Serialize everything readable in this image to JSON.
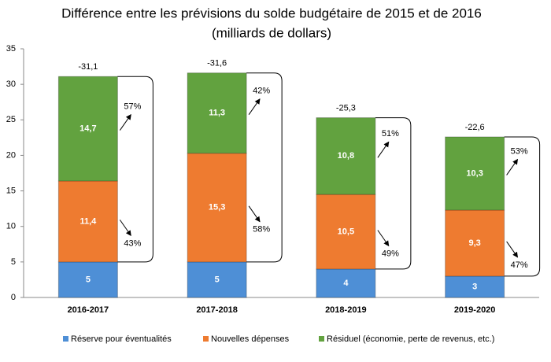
{
  "chart_data": {
    "type": "stacked_bar",
    "title": [
      "Différence entre les prévisions du solde budgétaire de 2015 et de 2016",
      "(milliards de dollars)"
    ],
    "categories": [
      "2016-2017",
      "2017-2018",
      "2018-2019",
      "2019-2020"
    ],
    "series": [
      {
        "name": "Réserve pour éventualités",
        "color": "#4e8fd6",
        "values": [
          5,
          5,
          4,
          3
        ]
      },
      {
        "name": "Nouvelles dépenses",
        "color": "#ee7b30",
        "values": [
          11.4,
          15.3,
          10.5,
          9.3
        ],
        "value_labels": [
          "11,4",
          "15,3",
          "10,5",
          "9,3"
        ],
        "share_values": [
          43,
          58,
          49,
          47
        ],
        "share_labels": [
          "43%",
          "58%",
          "49%",
          "47%"
        ]
      },
      {
        "name": "Résiduel (économie, perte de revenus, etc.)",
        "color": "#62a23f",
        "values": [
          14.7,
          11.3,
          10.8,
          10.3
        ],
        "value_labels": [
          "14,7",
          "11,3",
          "10,8",
          "10,3"
        ],
        "share_values": [
          57,
          42,
          51,
          53
        ],
        "share_labels": [
          "57%",
          "42%",
          "51%",
          "53%"
        ]
      }
    ],
    "totals": [
      {
        "value": -31.1,
        "label": "-31,1"
      },
      {
        "value": -31.6,
        "label": "-31,6"
      },
      {
        "value": -25.3,
        "label": "-25,3"
      },
      {
        "value": -22.6,
        "label": "-22,6"
      }
    ],
    "ylim": [
      0,
      35
    ],
    "yticks": [
      0,
      5,
      10,
      15,
      20,
      25,
      30,
      35
    ],
    "grid": false,
    "legend": "bottom"
  }
}
